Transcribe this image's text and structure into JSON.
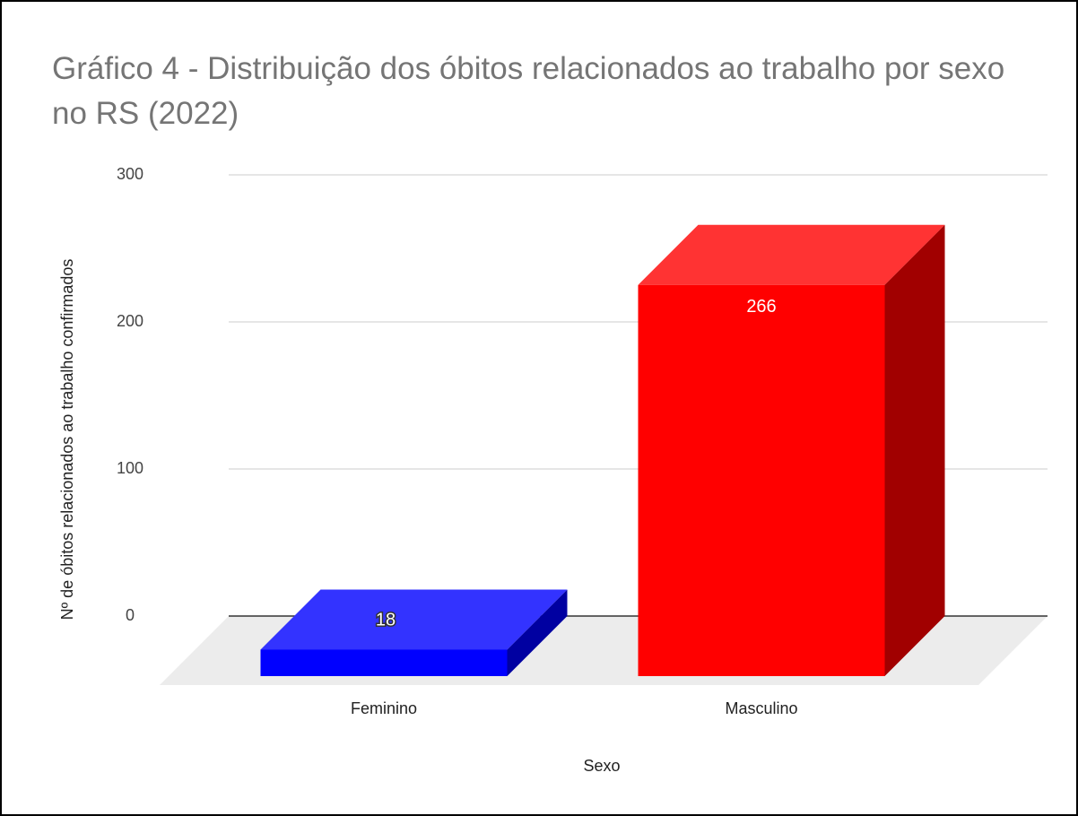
{
  "chart_data": {
    "type": "bar3d",
    "title": "Gráfico 4 - Distribuição dos óbitos relacionados ao trabalho por sexo no RS (2022)",
    "x_label": "Sexo",
    "y_label": "Nº de óbitos relacionados ao trabalho confirmados",
    "categories": [
      "Feminino",
      "Masculino"
    ],
    "values": [
      18,
      266
    ],
    "colors": [
      "#0000ff",
      "#ff0000"
    ],
    "ylim": [
      0,
      300
    ],
    "yticks": [
      0,
      100,
      200,
      300
    ],
    "grid": true
  }
}
